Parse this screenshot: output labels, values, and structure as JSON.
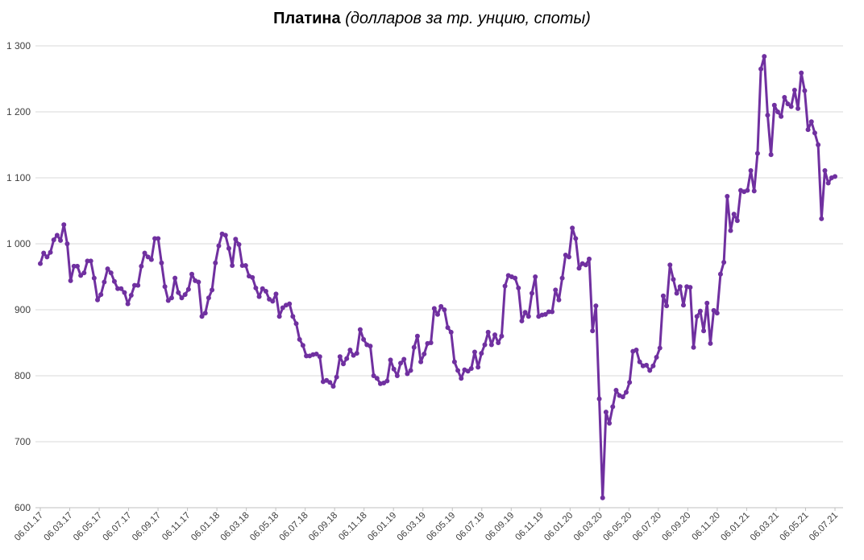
{
  "chart_data": {
    "type": "line",
    "title": "Платина",
    "subtitle": "(долларов за тр. унцию, споты)",
    "xlabel": "",
    "ylabel": "",
    "ylim": [
      600,
      1300
    ],
    "yticks": [
      600,
      700,
      800,
      900,
      1000,
      1100,
      1200,
      1300
    ],
    "ytick_labels": [
      "600",
      "700",
      "800",
      "900",
      "1 000",
      "1 100",
      "1 200",
      "1 300"
    ],
    "xtick_labels": [
      "06.01.17",
      "06.03.17",
      "06.05.17",
      "06.07.17",
      "06.09.17",
      "06.11.17",
      "06.01.18",
      "06.03.18",
      "06.05.18",
      "06.07.18",
      "06.09.18",
      "06.11.18",
      "06.01.19",
      "06.03.19",
      "06.05.19",
      "06.07.19",
      "06.09.19",
      "06.11.19",
      "06.01.20",
      "06.03.20",
      "06.05.20",
      "06.07.20",
      "06.09.20",
      "06.11.20",
      "06.01.21",
      "06.03.21",
      "06.05.21",
      "06.07.21"
    ],
    "grid": true,
    "legend": "none",
    "color": "#7030A0",
    "series": [
      {
        "values": [
          970,
          986,
          980,
          987,
          1006,
          1013,
          1005,
          1029,
          1000,
          944,
          966,
          966,
          952,
          956,
          974,
          974,
          948,
          915,
          923,
          942,
          962,
          956,
          943,
          932,
          932,
          926,
          909,
          922,
          937,
          937,
          966,
          986,
          980,
          976,
          1008,
          1008,
          971,
          935,
          914,
          918,
          948,
          926,
          918,
          923,
          931,
          954,
          944,
          942,
          890,
          895,
          918,
          930,
          971,
          997,
          1015,
          1013,
          993,
          967,
          1007,
          999,
          967,
          967,
          951,
          949,
          933,
          920,
          932,
          928,
          916,
          913,
          924,
          890,
          903,
          907,
          909,
          890,
          879,
          855,
          846,
          830,
          830,
          832,
          833,
          829,
          791,
          793,
          790,
          784,
          798,
          829,
          818,
          826,
          839,
          831,
          834,
          870,
          855,
          847,
          845,
          800,
          796,
          788,
          789,
          792,
          824,
          810,
          800,
          819,
          825,
          803,
          808,
          843,
          860,
          821,
          833,
          849,
          850,
          902,
          893,
          905,
          900,
          873,
          866,
          821,
          808,
          796,
          809,
          807,
          811,
          836,
          813,
          834,
          847,
          866,
          847,
          862,
          850,
          860,
          936,
          952,
          950,
          948,
          933,
          883,
          896,
          890,
          925,
          950,
          890,
          892,
          893,
          897,
          897,
          930,
          915,
          948,
          983,
          980,
          1024,
          1008,
          963,
          970,
          968,
          977,
          868,
          906,
          765,
          615,
          745,
          728,
          753,
          778,
          770,
          768,
          775,
          790,
          837,
          839,
          821,
          815,
          816,
          808,
          815,
          828,
          842,
          921,
          906,
          968,
          946,
          925,
          935,
          907,
          935,
          934,
          843,
          890,
          898,
          868,
          910,
          849,
          899,
          895,
          954,
          972,
          1072,
          1020,
          1045,
          1035,
          1081,
          1079,
          1081,
          1111,
          1080,
          1137,
          1265,
          1284,
          1195,
          1135,
          1210,
          1200,
          1193,
          1222,
          1212,
          1208,
          1233,
          1205,
          1259,
          1232,
          1173,
          1185,
          1168,
          1150,
          1038,
          1111,
          1092,
          1100,
          1102
        ]
      }
    ]
  }
}
